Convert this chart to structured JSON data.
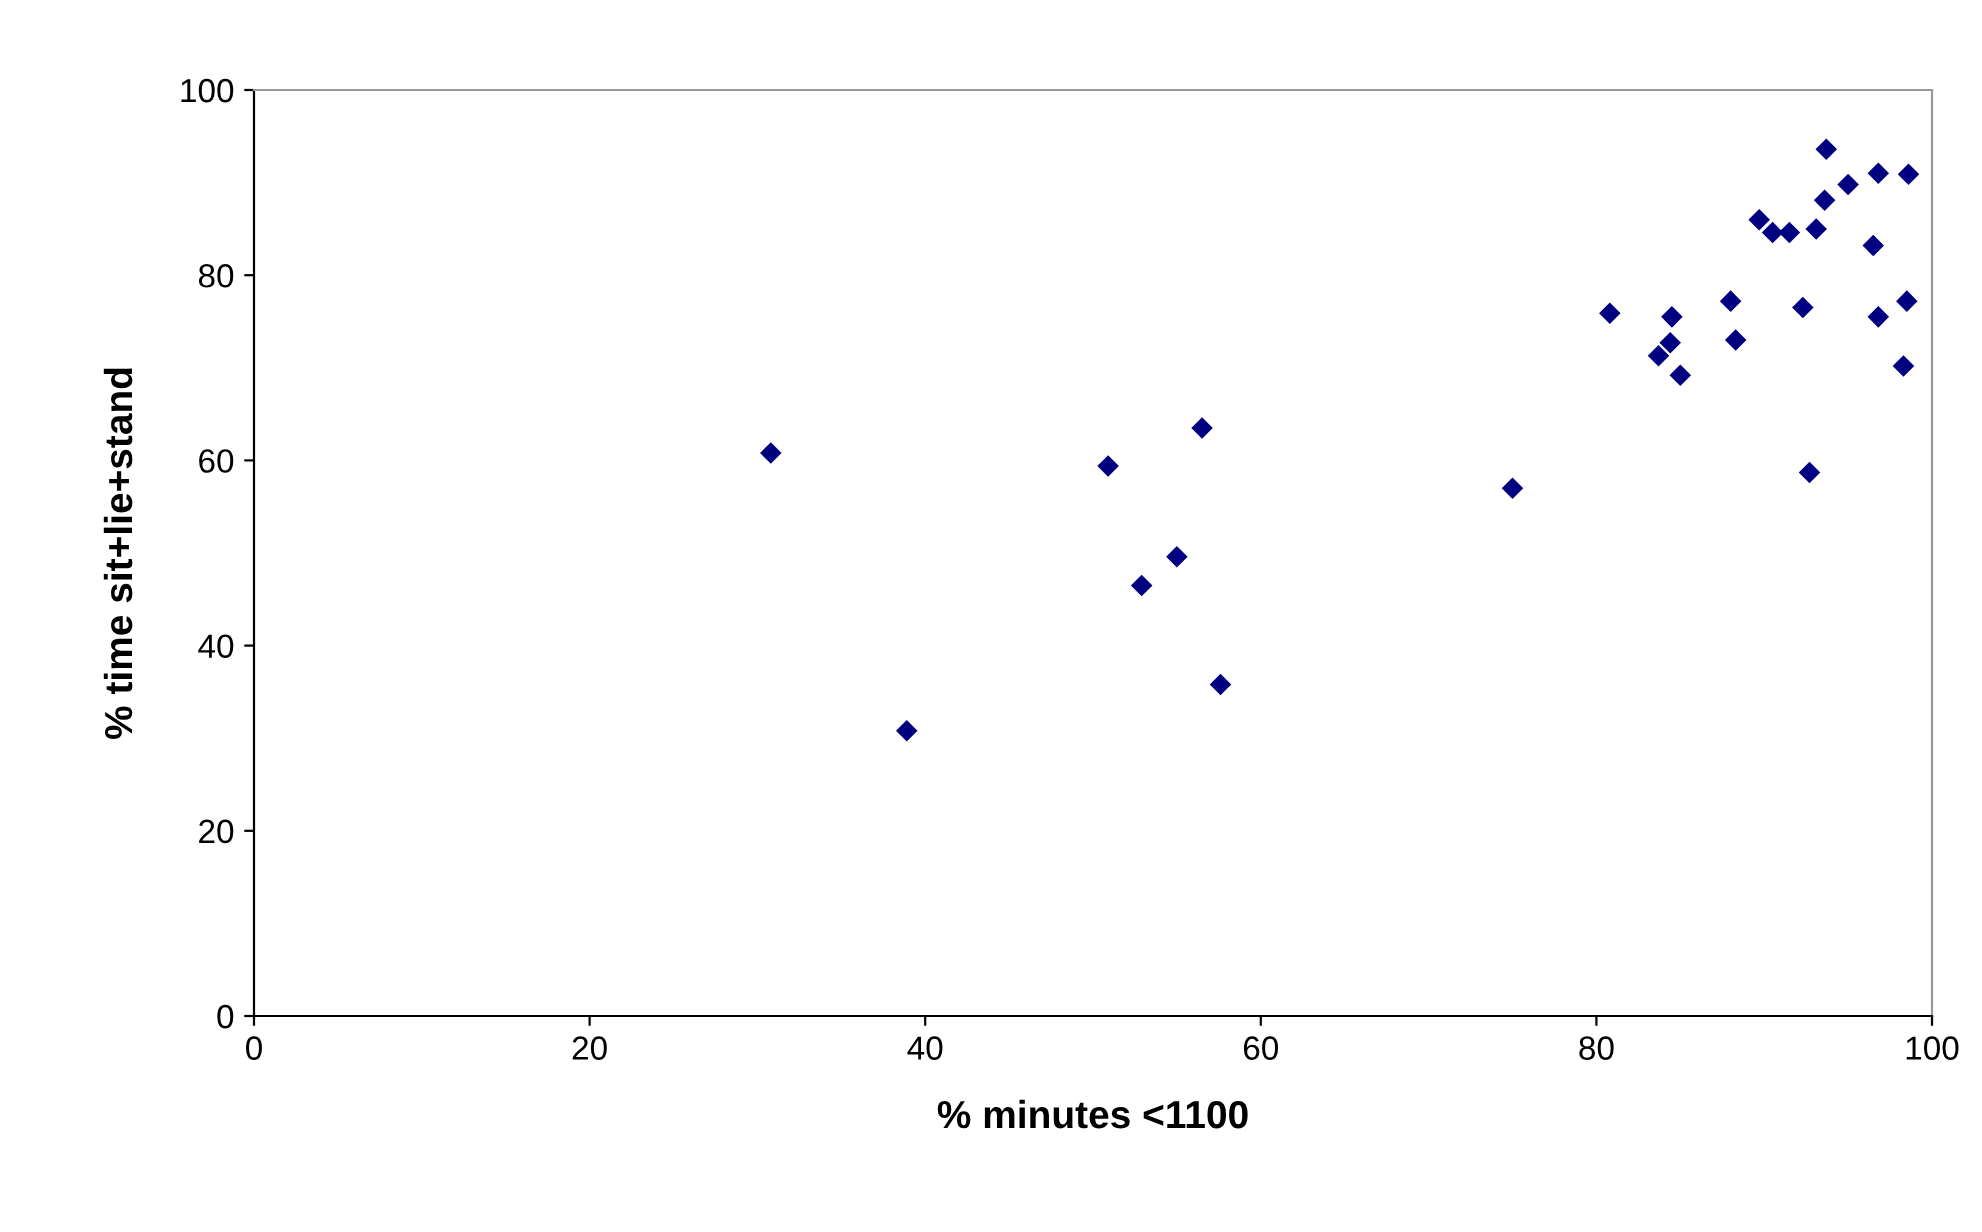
{
  "chart_data": {
    "type": "scatter",
    "xlabel": "% minutes <1100",
    "ylabel": "% time sit+lie+stand",
    "x": [
      30.8,
      38.9,
      50.9,
      52.9,
      55.0,
      56.5,
      57.6,
      75.0,
      80.8,
      83.7,
      84.4,
      84.5,
      85.0,
      88.0,
      88.3,
      89.7,
      90.5,
      91.5,
      92.3,
      92.7,
      93.1,
      93.6,
      93.7,
      95.0,
      96.5,
      96.8,
      96.8,
      98.3,
      98.5,
      98.6
    ],
    "series": [
      {
        "color": "#000080",
        "values": [
          60.8,
          30.8,
          59.4,
          46.5,
          49.6,
          63.5,
          35.8,
          57.0,
          75.9,
          71.3,
          72.7,
          75.5,
          69.2,
          77.2,
          73.0,
          86.0,
          84.6,
          84.6,
          76.5,
          58.7,
          85.0,
          88.1,
          93.6,
          89.8,
          83.2,
          75.5,
          91.0,
          70.2,
          77.2,
          90.9
        ]
      }
    ],
    "marker": "diamond",
    "xlim": [
      0,
      100
    ],
    "ylim": [
      0,
      100
    ],
    "xticks": [
      0,
      20,
      40,
      60,
      80,
      100
    ],
    "yticks": [
      0,
      20,
      40,
      60,
      80,
      100
    ],
    "grid": false,
    "legend": false
  }
}
